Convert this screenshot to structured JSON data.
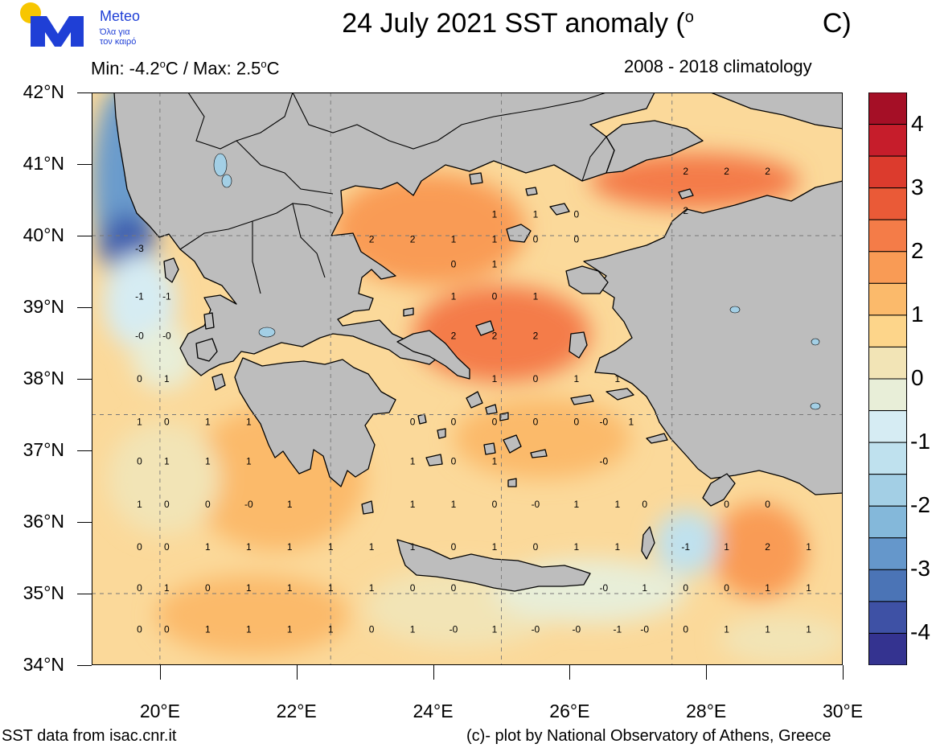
{
  "header": {
    "title_main": "24 July 2021 SST anomaly (",
    "title_deg": "o",
    "title_tail": "C)",
    "min_max": {
      "min_prefix": "Min: -4.2",
      "min_unit": "C / Max: 2.5",
      "max_unit": "C",
      "deg": "o"
    },
    "climatology": "2008 - 2018 climatology"
  },
  "logo": {
    "name": "Meteo",
    "line1": "Όλα για",
    "line2": "τον καιρό",
    "icon": "meteo-m-logo"
  },
  "footer": {
    "left": "SST data from isac.cnr.it",
    "right": "(c)- plot by National Observatory of Athens, Greece"
  },
  "axes": {
    "lat_labels": [
      "42°N",
      "41°N",
      "40°N",
      "39°N",
      "38°N",
      "37°N",
      "36°N",
      "35°N",
      "34°N"
    ],
    "lon_labels": [
      "20°E",
      "22°E",
      "24°E",
      "26°E",
      "28°E",
      "30°E"
    ],
    "lat_range": [
      34,
      42
    ],
    "lon_range": [
      19,
      30
    ]
  },
  "colorbar": {
    "labels": [
      "4",
      "3",
      "2",
      "1",
      "0",
      "-1",
      "-2",
      "-3",
      "-4"
    ],
    "colors": [
      "#a50f26",
      "#c61d2b",
      "#dc3b2d",
      "#ea5a37",
      "#f47c48",
      "#f99b55",
      "#fbba6b",
      "#fdd58a",
      "#f2e4b6",
      "#e8eed8",
      "#d6ecf3",
      "#bfe1ee",
      "#a3cfe5",
      "#84b8da",
      "#6597cb",
      "#4b74b6",
      "#3e51a5",
      "#343390"
    ],
    "range": [
      -4.5,
      4.5
    ]
  },
  "map": {
    "land_color": "#bdbdbd",
    "sea_base_color": "#fdd58a",
    "anomaly_labels": [
      {
        "lat": 39.82,
        "lon": 19.7,
        "v": "-3"
      },
      {
        "lat": 39.15,
        "lon": 19.7,
        "v": "-1"
      },
      {
        "lat": 39.15,
        "lon": 20.1,
        "v": "-1"
      },
      {
        "lat": 38.6,
        "lon": 19.7,
        "v": "-0"
      },
      {
        "lat": 38.6,
        "lon": 20.1,
        "v": "-0"
      },
      {
        "lat": 38.0,
        "lon": 19.7,
        "v": "0"
      },
      {
        "lat": 38.0,
        "lon": 20.1,
        "v": "1"
      },
      {
        "lat": 37.4,
        "lon": 19.7,
        "v": "1"
      },
      {
        "lat": 37.4,
        "lon": 20.1,
        "v": "0"
      },
      {
        "lat": 37.4,
        "lon": 20.7,
        "v": "1"
      },
      {
        "lat": 37.4,
        "lon": 21.3,
        "v": "1"
      },
      {
        "lat": 36.85,
        "lon": 19.7,
        "v": "0"
      },
      {
        "lat": 36.85,
        "lon": 20.1,
        "v": "1"
      },
      {
        "lat": 36.85,
        "lon": 20.7,
        "v": "1"
      },
      {
        "lat": 36.85,
        "lon": 21.3,
        "v": "1"
      },
      {
        "lat": 36.25,
        "lon": 19.7,
        "v": "1"
      },
      {
        "lat": 36.25,
        "lon": 20.1,
        "v": "0"
      },
      {
        "lat": 36.25,
        "lon": 20.7,
        "v": "0"
      },
      {
        "lat": 36.25,
        "lon": 21.3,
        "v": "-0"
      },
      {
        "lat": 36.25,
        "lon": 21.9,
        "v": "1"
      },
      {
        "lat": 35.65,
        "lon": 19.7,
        "v": "0"
      },
      {
        "lat": 35.65,
        "lon": 20.1,
        "v": "0"
      },
      {
        "lat": 35.65,
        "lon": 20.7,
        "v": "1"
      },
      {
        "lat": 35.65,
        "lon": 21.3,
        "v": "1"
      },
      {
        "lat": 35.65,
        "lon": 21.9,
        "v": "1"
      },
      {
        "lat": 35.65,
        "lon": 22.5,
        "v": "1"
      },
      {
        "lat": 35.65,
        "lon": 23.1,
        "v": "1"
      },
      {
        "lat": 35.65,
        "lon": 23.7,
        "v": "1"
      },
      {
        "lat": 35.65,
        "lon": 24.3,
        "v": "0"
      },
      {
        "lat": 35.65,
        "lon": 24.9,
        "v": "1"
      },
      {
        "lat": 35.65,
        "lon": 25.5,
        "v": "0"
      },
      {
        "lat": 35.65,
        "lon": 26.1,
        "v": "1"
      },
      {
        "lat": 35.65,
        "lon": 26.7,
        "v": "1"
      },
      {
        "lat": 35.65,
        "lon": 27.7,
        "v": "-1"
      },
      {
        "lat": 35.65,
        "lon": 28.3,
        "v": "1"
      },
      {
        "lat": 35.65,
        "lon": 28.9,
        "v": "2"
      },
      {
        "lat": 35.65,
        "lon": 29.5,
        "v": "1"
      },
      {
        "lat": 35.08,
        "lon": 19.7,
        "v": "0"
      },
      {
        "lat": 35.08,
        "lon": 20.1,
        "v": "1"
      },
      {
        "lat": 35.08,
        "lon": 20.7,
        "v": "0"
      },
      {
        "lat": 35.08,
        "lon": 21.3,
        "v": "1"
      },
      {
        "lat": 35.08,
        "lon": 21.9,
        "v": "1"
      },
      {
        "lat": 35.08,
        "lon": 22.5,
        "v": "1"
      },
      {
        "lat": 35.08,
        "lon": 23.1,
        "v": "1"
      },
      {
        "lat": 35.08,
        "lon": 23.7,
        "v": "0"
      },
      {
        "lat": 35.08,
        "lon": 24.3,
        "v": "0"
      },
      {
        "lat": 35.08,
        "lon": 26.5,
        "v": "-0"
      },
      {
        "lat": 35.08,
        "lon": 27.1,
        "v": "1"
      },
      {
        "lat": 35.08,
        "lon": 27.7,
        "v": "0"
      },
      {
        "lat": 35.08,
        "lon": 28.3,
        "v": "0"
      },
      {
        "lat": 35.08,
        "lon": 28.9,
        "v": "1"
      },
      {
        "lat": 35.08,
        "lon": 29.5,
        "v": "1"
      },
      {
        "lat": 34.5,
        "lon": 19.7,
        "v": "0"
      },
      {
        "lat": 34.5,
        "lon": 20.1,
        "v": "0"
      },
      {
        "lat": 34.5,
        "lon": 20.7,
        "v": "1"
      },
      {
        "lat": 34.5,
        "lon": 21.3,
        "v": "1"
      },
      {
        "lat": 34.5,
        "lon": 21.9,
        "v": "1"
      },
      {
        "lat": 34.5,
        "lon": 22.5,
        "v": "1"
      },
      {
        "lat": 34.5,
        "lon": 23.1,
        "v": "0"
      },
      {
        "lat": 34.5,
        "lon": 23.7,
        "v": "1"
      },
      {
        "lat": 34.5,
        "lon": 24.3,
        "v": "-0"
      },
      {
        "lat": 34.5,
        "lon": 24.9,
        "v": "1"
      },
      {
        "lat": 34.5,
        "lon": 25.5,
        "v": "-0"
      },
      {
        "lat": 34.5,
        "lon": 26.1,
        "v": "-0"
      },
      {
        "lat": 34.5,
        "lon": 26.7,
        "v": "-1"
      },
      {
        "lat": 34.5,
        "lon": 27.1,
        "v": "-0"
      },
      {
        "lat": 34.5,
        "lon": 27.7,
        "v": "0"
      },
      {
        "lat": 34.5,
        "lon": 28.3,
        "v": "1"
      },
      {
        "lat": 34.5,
        "lon": 28.9,
        "v": "1"
      },
      {
        "lat": 34.5,
        "lon": 29.5,
        "v": "1"
      },
      {
        "lat": 39.95,
        "lon": 23.1,
        "v": "2"
      },
      {
        "lat": 39.95,
        "lon": 23.7,
        "v": "2"
      },
      {
        "lat": 39.95,
        "lon": 24.3,
        "v": "1"
      },
      {
        "lat": 39.95,
        "lon": 24.9,
        "v": "1"
      },
      {
        "lat": 39.95,
        "lon": 25.5,
        "v": "0"
      },
      {
        "lat": 39.95,
        "lon": 26.1,
        "v": "0"
      },
      {
        "lat": 40.3,
        "lon": 24.9,
        "v": "1"
      },
      {
        "lat": 40.3,
        "lon": 25.5,
        "v": "1"
      },
      {
        "lat": 40.3,
        "lon": 26.1,
        "v": "0"
      },
      {
        "lat": 39.6,
        "lon": 24.3,
        "v": "0"
      },
      {
        "lat": 39.6,
        "lon": 24.9,
        "v": "1"
      },
      {
        "lat": 39.15,
        "lon": 24.3,
        "v": "1"
      },
      {
        "lat": 39.15,
        "lon": 24.9,
        "v": "0"
      },
      {
        "lat": 39.15,
        "lon": 25.5,
        "v": "1"
      },
      {
        "lat": 38.6,
        "lon": 24.3,
        "v": "2"
      },
      {
        "lat": 38.6,
        "lon": 24.9,
        "v": "2"
      },
      {
        "lat": 38.6,
        "lon": 25.5,
        "v": "2"
      },
      {
        "lat": 38.0,
        "lon": 24.9,
        "v": "1"
      },
      {
        "lat": 38.0,
        "lon": 25.5,
        "v": "0"
      },
      {
        "lat": 38.0,
        "lon": 26.1,
        "v": "1"
      },
      {
        "lat": 38.0,
        "lon": 26.7,
        "v": "1"
      },
      {
        "lat": 37.4,
        "lon": 23.7,
        "v": "0"
      },
      {
        "lat": 37.4,
        "lon": 24.3,
        "v": "0"
      },
      {
        "lat": 37.4,
        "lon": 24.9,
        "v": "0"
      },
      {
        "lat": 37.4,
        "lon": 25.5,
        "v": "0"
      },
      {
        "lat": 37.4,
        "lon": 26.1,
        "v": "0"
      },
      {
        "lat": 37.4,
        "lon": 26.5,
        "v": "-0"
      },
      {
        "lat": 37.4,
        "lon": 26.9,
        "v": "1"
      },
      {
        "lat": 36.85,
        "lon": 23.7,
        "v": "1"
      },
      {
        "lat": 36.85,
        "lon": 24.3,
        "v": "0"
      },
      {
        "lat": 36.85,
        "lon": 24.9,
        "v": "1"
      },
      {
        "lat": 36.85,
        "lon": 26.5,
        "v": "-0"
      },
      {
        "lat": 36.25,
        "lon": 23.7,
        "v": "1"
      },
      {
        "lat": 36.25,
        "lon": 24.3,
        "v": "1"
      },
      {
        "lat": 36.25,
        "lon": 24.9,
        "v": "0"
      },
      {
        "lat": 36.25,
        "lon": 25.5,
        "v": "-0"
      },
      {
        "lat": 36.25,
        "lon": 26.1,
        "v": "1"
      },
      {
        "lat": 36.25,
        "lon": 26.7,
        "v": "1"
      },
      {
        "lat": 36.25,
        "lon": 27.1,
        "v": "0"
      },
      {
        "lat": 36.25,
        "lon": 28.3,
        "v": "0"
      },
      {
        "lat": 36.25,
        "lon": 28.9,
        "v": "0"
      },
      {
        "lat": 40.9,
        "lon": 27.7,
        "v": "2"
      },
      {
        "lat": 40.9,
        "lon": 28.3,
        "v": "2"
      },
      {
        "lat": 40.9,
        "lon": 28.9,
        "v": "2"
      },
      {
        "lat": 40.35,
        "lon": 27.7,
        "v": "2"
      }
    ]
  }
}
